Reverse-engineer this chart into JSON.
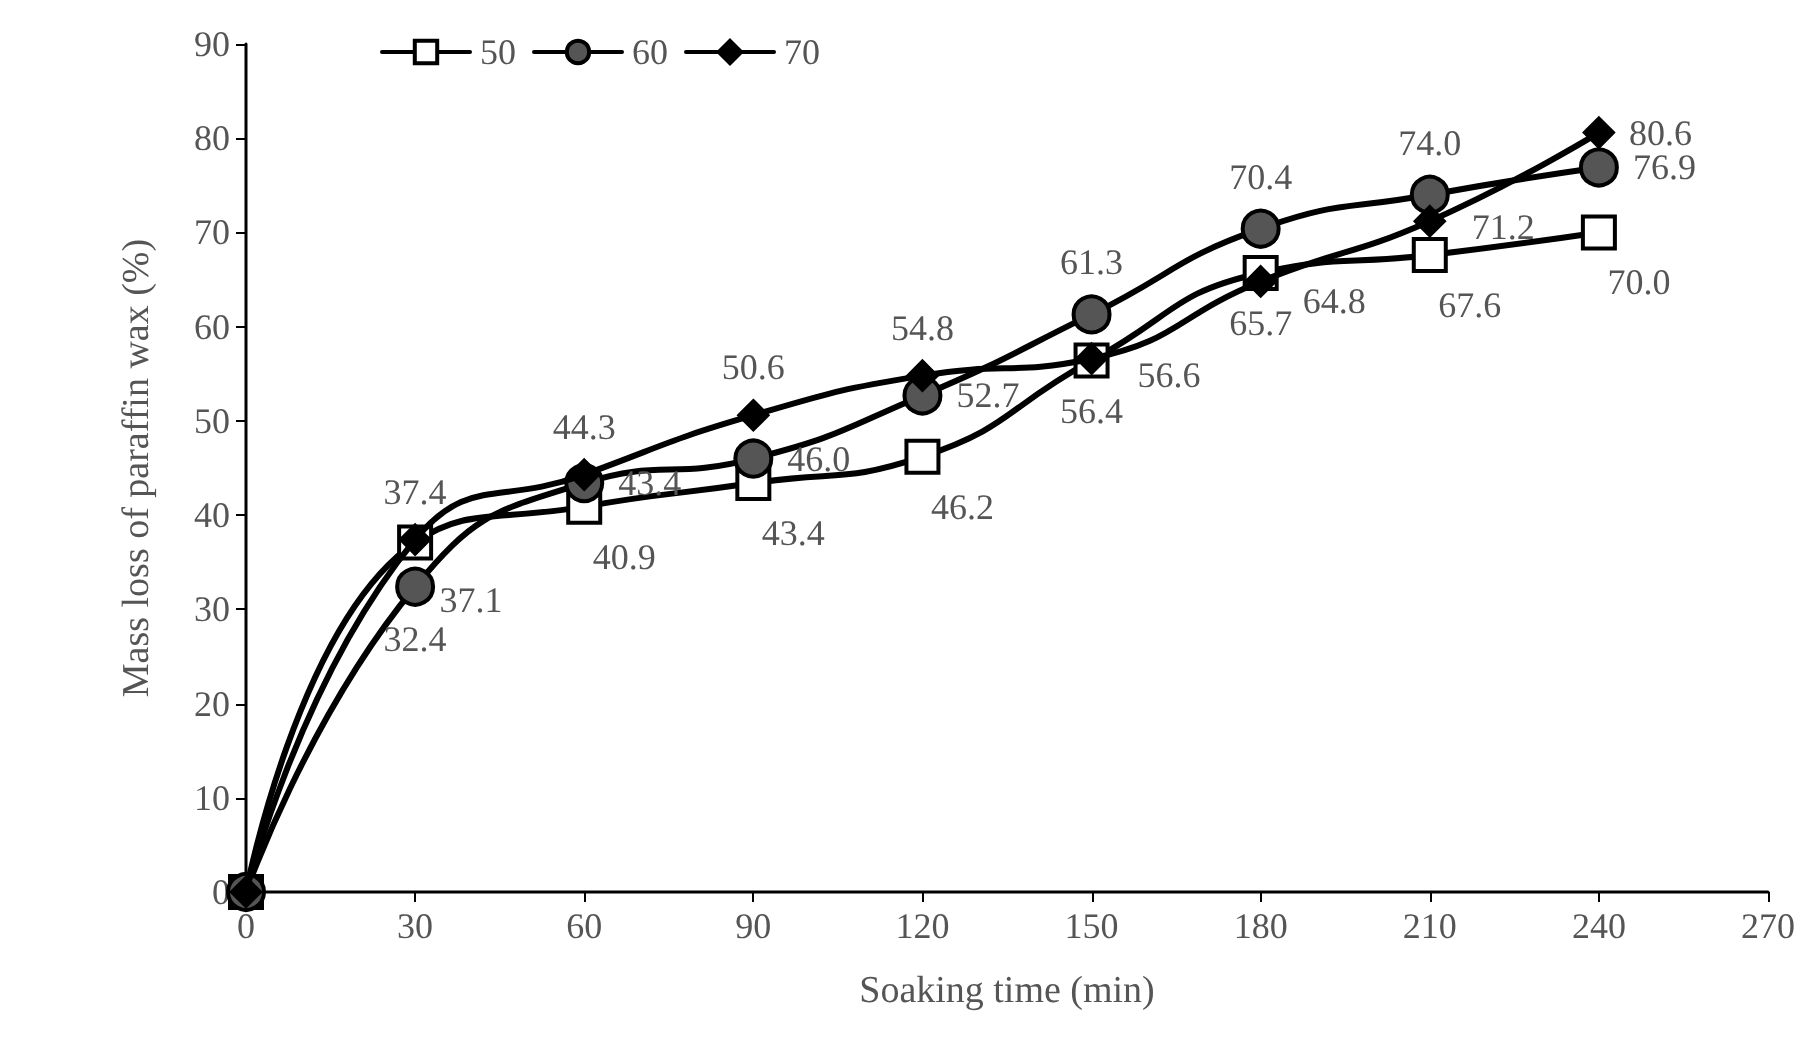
{
  "chart_data": {
    "type": "line",
    "xlabel": "Soaking time (min)",
    "ylabel": "Mass loss of paraffin wax (%)",
    "x": [
      0,
      30,
      60,
      90,
      120,
      150,
      180,
      210,
      240
    ],
    "series": [
      {
        "name": "50",
        "color": "#ffffff",
        "marker": "square",
        "values": [
          0,
          37.1,
          40.9,
          43.4,
          46.2,
          56.4,
          65.7,
          67.6,
          70.0
        ],
        "value_labels": [
          null,
          "37.1",
          "40.9",
          "43.4",
          "46.2",
          "56.4",
          "65.7",
          "67.6",
          "70.0"
        ]
      },
      {
        "name": "60",
        "color": "#555555",
        "marker": "circle",
        "values": [
          0,
          32.4,
          43.4,
          46.0,
          52.7,
          61.3,
          70.4,
          74.0,
          76.9
        ],
        "value_labels": [
          null,
          "32.4",
          "43.4",
          "46.0",
          "52.7",
          "61.3",
          "70.4",
          "74.0",
          "76.9"
        ]
      },
      {
        "name": "70",
        "color": "#000000",
        "marker": "diamond",
        "values": [
          0,
          37.4,
          44.3,
          50.6,
          54.8,
          56.6,
          64.8,
          71.2,
          80.6
        ],
        "value_labels": [
          null,
          "37.4",
          "44.3",
          "50.6",
          "54.8",
          "56.6",
          "64.8",
          "71.2",
          "80.6"
        ]
      }
    ],
    "xlim": [
      0,
      270
    ],
    "xticks": [
      0,
      30,
      60,
      90,
      120,
      150,
      180,
      210,
      240,
      270
    ],
    "ylim": [
      0,
      90
    ],
    "yticks": [
      0,
      10,
      20,
      30,
      40,
      50,
      60,
      70,
      80,
      90
    ],
    "grid": false,
    "legend": "top left",
    "line_style": "solid"
  }
}
